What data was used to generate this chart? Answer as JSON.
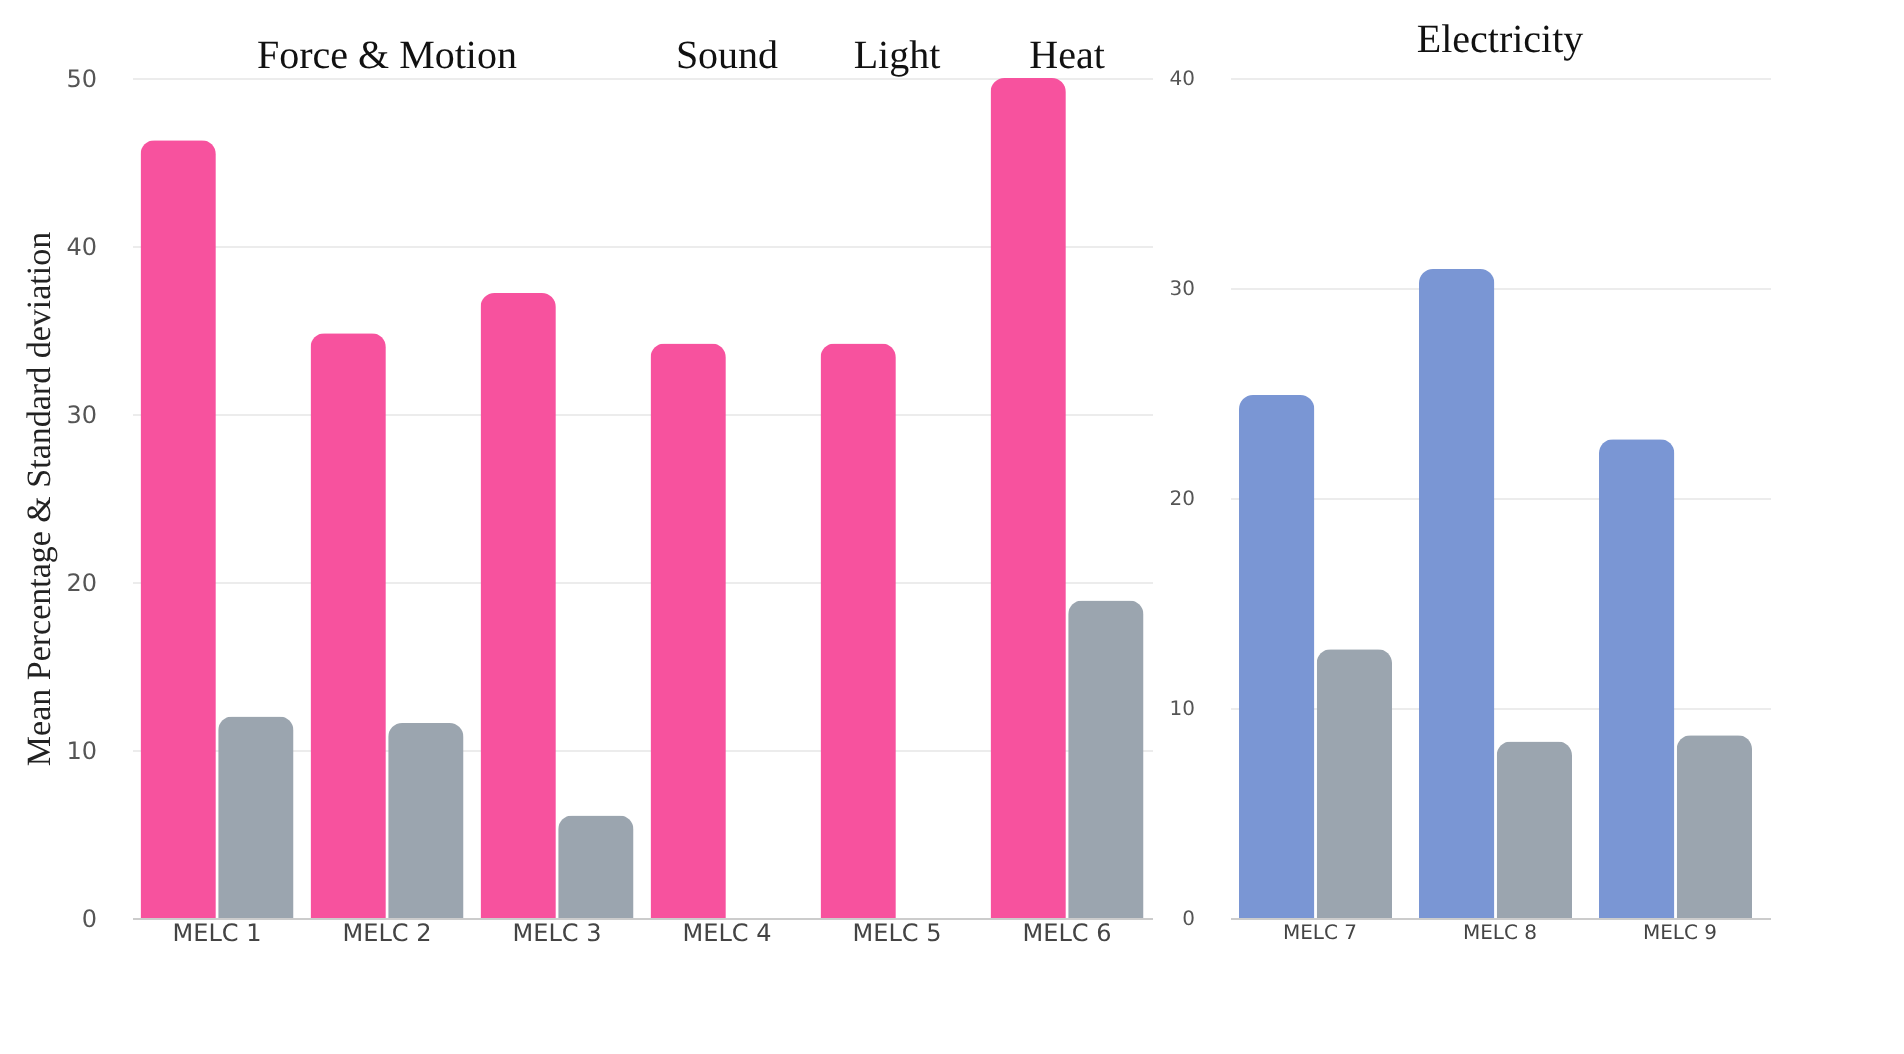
{
  "chart_data": [
    {
      "type": "bar",
      "categories": [
        "MELC 1",
        "MELC 2",
        "MELC 3",
        "MELC 4",
        "MELC 5",
        "MELC 6"
      ],
      "ylabel": "Mean Percentage & Standard deviation",
      "ylim": [
        0,
        50
      ],
      "yticks": [
        0,
        10,
        20,
        30,
        40,
        50
      ],
      "grid": "y",
      "legend": false,
      "series": [
        {
          "color": "#f7529e",
          "values": [
            46.3,
            34.8,
            37.2,
            34.2,
            34.2,
            50.0
          ]
        },
        {
          "color": "#9ba5af",
          "values": [
            12.0,
            11.6,
            6.1,
            0,
            0,
            18.9
          ]
        }
      ],
      "annotations": [
        "Force & Motion",
        "Sound",
        "Light",
        "Heat"
      ]
    },
    {
      "type": "bar",
      "title": "Electricity",
      "categories": [
        "MELC 7",
        "MELC 8",
        "MELC 9"
      ],
      "ylim": [
        0,
        40
      ],
      "yticks": [
        0,
        10,
        20,
        30,
        40
      ],
      "grid": "y",
      "legend": false,
      "series": [
        {
          "color": "#7a96d4",
          "values": [
            24.9,
            30.9,
            22.8
          ]
        },
        {
          "color": "#9ba5af",
          "values": [
            12.8,
            8.4,
            8.7
          ]
        }
      ]
    }
  ]
}
